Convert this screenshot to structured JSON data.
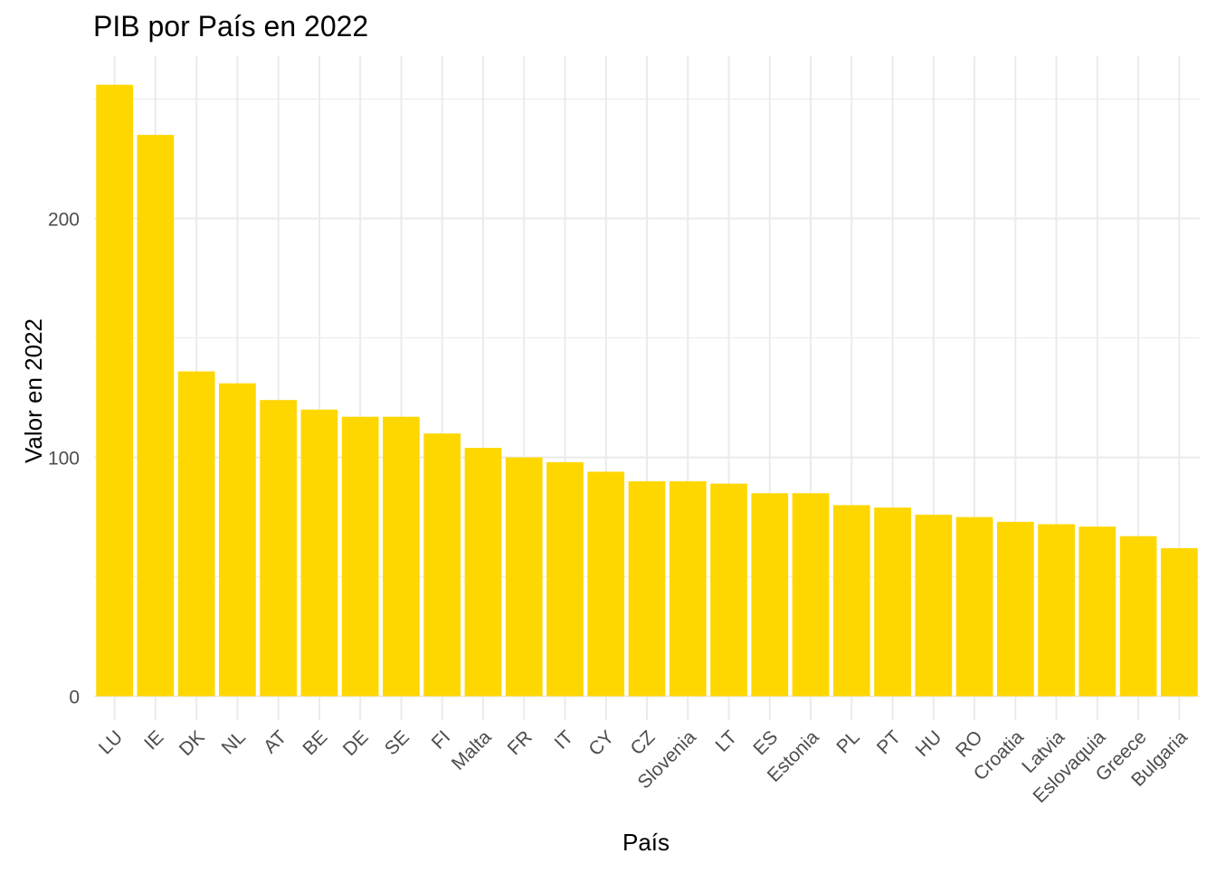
{
  "chart_data": {
    "type": "bar",
    "title": "PIB por País en 2022",
    "xlabel": "País",
    "ylabel": "Valor en 2022",
    "categories": [
      "LU",
      "IE",
      "DK",
      "NL",
      "AT",
      "BE",
      "DE",
      "SE",
      "FI",
      "Malta",
      "FR",
      "IT",
      "CY",
      "CZ",
      "Slovenia",
      "LT",
      "ES",
      "Estonia",
      "PL",
      "PT",
      "HU",
      "RO",
      "Croatia",
      "Latvia",
      "Eslovaquia",
      "Greece",
      "Bulgaria"
    ],
    "values": [
      256,
      235,
      136,
      131,
      124,
      120,
      117,
      117,
      110,
      104,
      100,
      98,
      94,
      90,
      90,
      89,
      85,
      85,
      80,
      79,
      76,
      75,
      73,
      72,
      71,
      67,
      62
    ],
    "ylim": [
      -10,
      268
    ],
    "yticks": [
      0,
      100,
      200
    ],
    "ytick_labels": [
      "0",
      "100",
      "200"
    ],
    "grid": true,
    "bar_color": "#FFD700",
    "grid_color": "#EBEBEB"
  }
}
